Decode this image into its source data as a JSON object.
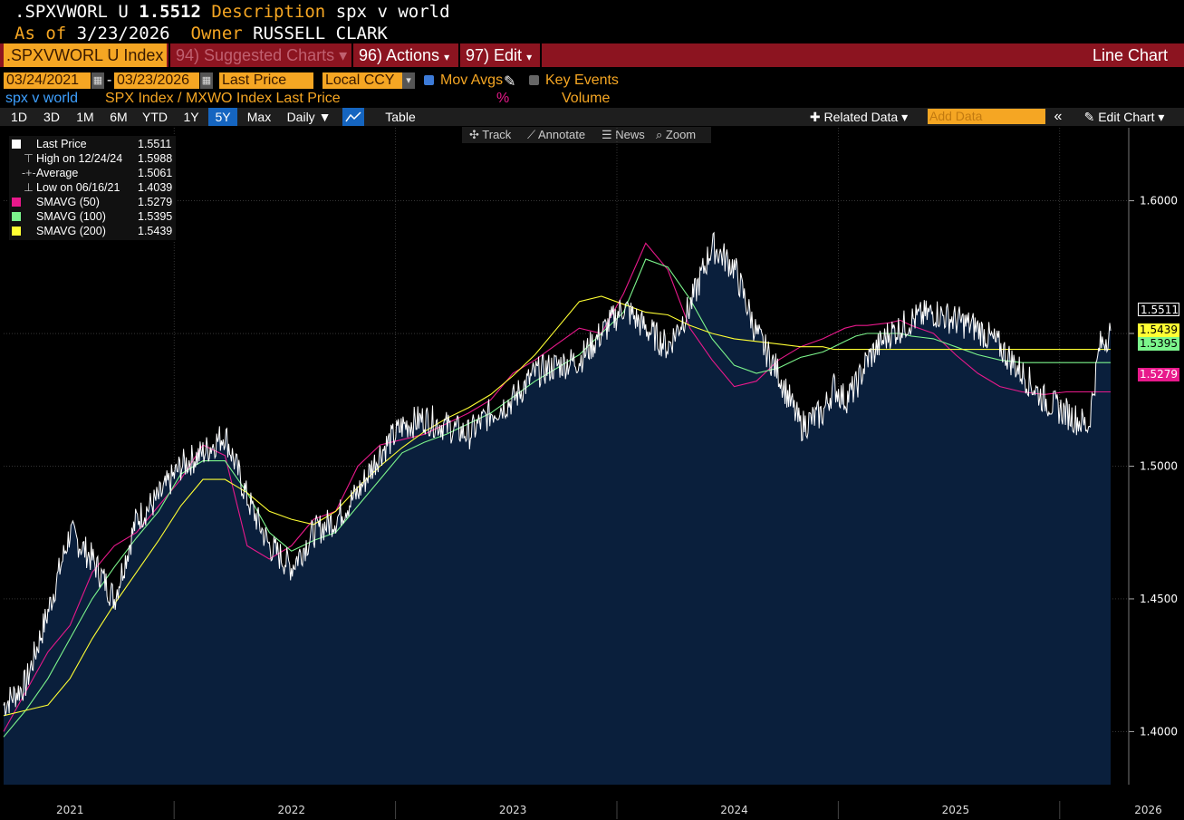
{
  "header": {
    "ticker": ".SPXVWORL U",
    "price": "1.5512",
    "desc_label": "Description",
    "desc_value": "spx v world",
    "asof_label": "As of",
    "asof_value": "3/23/2026",
    "owner_label": "Owner",
    "owner_value": "RUSSELL CLARK"
  },
  "toolbar": {
    "index_box": ".SPXVWORL U Index",
    "suggested": "94) Suggested Charts",
    "actions": "96) Actions",
    "edit": "97) Edit",
    "chart_type": "Line Chart"
  },
  "controls": {
    "start_date": "03/24/2021",
    "end_date": "03/23/2026",
    "field": "Last Price",
    "currency": "Local CCY",
    "mov_avgs": "Mov Avgs",
    "key_events": "Key Events",
    "series_name": "spx v world",
    "series_desc": "SPX Index / MXWO Index Last Price",
    "pct": "%",
    "volume": "Volume",
    "ranges": [
      "1D",
      "3D",
      "1M",
      "6M",
      "YTD",
      "1Y",
      "5Y",
      "Max"
    ],
    "selected_range": "5Y",
    "period": "Daily",
    "table": "Table",
    "related": "Related Data",
    "add_data": "Add Data",
    "edit_chart": "Edit Chart",
    "tools": [
      "Track",
      "Annotate",
      "News",
      "Zoom"
    ]
  },
  "legend": [
    {
      "label": "Last Price",
      "value": "1.5511",
      "color": "#ffffff"
    },
    {
      "label": "High on 12/24/24",
      "value": "1.5988",
      "color": "#bbbbbb"
    },
    {
      "label": "Average",
      "value": "1.5061",
      "color": "#bbbbbb"
    },
    {
      "label": "Low on 06/16/21",
      "value": "1.4039",
      "color": "#bbbbbb"
    },
    {
      "label": "SMAVG (50)",
      "value": "1.5279",
      "color": "#e8198b"
    },
    {
      "label": "SMAVG (100)",
      "value": "1.5395",
      "color": "#7cf58c"
    },
    {
      "label": "SMAVG (200)",
      "value": "1.5439",
      "color": "#ffff33"
    }
  ],
  "price_labels": {
    "last": "1.5511",
    "sma200": "1.5439",
    "sma100": "1.5395",
    "sma50": "1.5279"
  },
  "chart_data": {
    "type": "line",
    "title": "spx v world",
    "ylim": [
      1.38,
      1.6275
    ],
    "yticks": [
      1.4,
      1.45,
      1.5,
      1.55,
      1.6
    ],
    "ytick_labels": [
      "1.4000",
      "1.4500",
      "1.5000",
      "1.5500",
      "1.6000"
    ],
    "x_labels": [
      "2021",
      "2022",
      "2023",
      "2024",
      "2025",
      "2026"
    ],
    "x_label_pos": [
      0.3,
      1.3,
      2.3,
      3.3,
      4.3,
      5.17
    ],
    "year_boundaries": [
      0.77,
      1.77,
      2.77,
      3.77,
      4.77
    ],
    "x_range": [
      0,
      5.0
    ],
    "x": [
      0.0,
      0.1,
      0.2,
      0.3,
      0.4,
      0.5,
      0.6,
      0.7,
      0.8,
      0.9,
      1.0,
      1.1,
      1.2,
      1.3,
      1.4,
      1.5,
      1.6,
      1.7,
      1.8,
      1.9,
      2.0,
      2.1,
      2.2,
      2.3,
      2.4,
      2.5,
      2.6,
      2.7,
      2.8,
      2.9,
      3.0,
      3.1,
      3.2,
      3.3,
      3.4,
      3.5,
      3.6,
      3.7,
      3.75,
      3.8,
      3.85,
      3.9,
      4.0,
      4.05,
      4.1,
      4.2,
      4.3,
      4.4,
      4.5,
      4.6,
      4.7,
      4.8,
      4.9,
      4.95,
      5.0
    ],
    "series": [
      {
        "name": "Last Price",
        "color": "#ffffff",
        "values": [
          1.41,
          1.418,
          1.445,
          1.475,
          1.465,
          1.45,
          1.48,
          1.488,
          1.5,
          1.505,
          1.512,
          1.488,
          1.47,
          1.462,
          1.475,
          1.48,
          1.49,
          1.505,
          1.515,
          1.518,
          1.515,
          1.512,
          1.52,
          1.525,
          1.535,
          1.538,
          1.54,
          1.55,
          1.56,
          1.552,
          1.545,
          1.56,
          1.583,
          1.575,
          1.55,
          1.535,
          1.515,
          1.52,
          1.53,
          1.525,
          1.53,
          1.54,
          1.55,
          1.552,
          1.555,
          1.558,
          1.555,
          1.552,
          1.545,
          1.535,
          1.525,
          1.52,
          1.515,
          1.545,
          1.551
        ]
      },
      {
        "name": "SMAVG (50)",
        "color": "#e8198b",
        "values": [
          1.4,
          1.415,
          1.43,
          1.44,
          1.46,
          1.47,
          1.475,
          1.485,
          1.495,
          1.508,
          1.504,
          1.47,
          1.465,
          1.47,
          1.48,
          1.483,
          1.5,
          1.508,
          1.51,
          1.512,
          1.516,
          1.52,
          1.525,
          1.535,
          1.54,
          1.546,
          1.552,
          1.55,
          1.565,
          1.584,
          1.574,
          1.552,
          1.54,
          1.53,
          1.532,
          1.54,
          1.545,
          1.548,
          1.55,
          1.552,
          1.553,
          1.553,
          1.554,
          1.555,
          1.553,
          1.55,
          1.542,
          1.535,
          1.53,
          1.528,
          1.527,
          1.528,
          1.528,
          1.528,
          1.528
        ]
      },
      {
        "name": "SMAVG (100)",
        "color": "#7cf58c",
        "values": [
          1.398,
          1.408,
          1.42,
          1.435,
          1.45,
          1.462,
          1.473,
          1.483,
          1.497,
          1.502,
          1.502,
          1.49,
          1.475,
          1.468,
          1.472,
          1.475,
          1.485,
          1.495,
          1.505,
          1.509,
          1.512,
          1.516,
          1.52,
          1.526,
          1.532,
          1.537,
          1.542,
          1.55,
          1.558,
          1.578,
          1.575,
          1.563,
          1.548,
          1.538,
          1.535,
          1.537,
          1.541,
          1.543,
          1.545,
          1.547,
          1.549,
          1.55,
          1.55,
          1.55,
          1.549,
          1.548,
          1.545,
          1.542,
          1.54,
          1.539,
          1.539,
          1.539,
          1.539,
          1.539,
          1.539
        ]
      },
      {
        "name": "SMAVG (200)",
        "color": "#ffff33",
        "values": [
          1.406,
          1.408,
          1.41,
          1.42,
          1.435,
          1.448,
          1.46,
          1.472,
          1.485,
          1.495,
          1.495,
          1.49,
          1.483,
          1.48,
          1.478,
          1.483,
          1.492,
          1.5,
          1.507,
          1.513,
          1.518,
          1.522,
          1.527,
          1.534,
          1.542,
          1.552,
          1.562,
          1.564,
          1.561,
          1.558,
          1.557,
          1.553,
          1.55,
          1.548,
          1.547,
          1.546,
          1.545,
          1.545,
          1.544,
          1.544,
          1.544,
          1.544,
          1.544,
          1.544,
          1.544,
          1.544,
          1.544,
          1.544,
          1.544,
          1.544,
          1.544,
          1.544,
          1.544,
          1.544,
          1.544
        ]
      }
    ]
  }
}
